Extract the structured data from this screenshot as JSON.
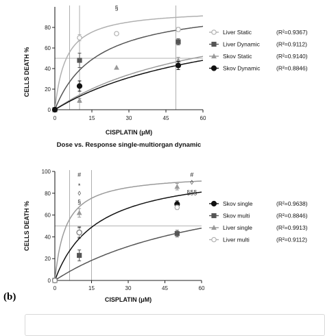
{
  "panel_label": "(b)",
  "chart_data": [
    {
      "type": "line",
      "title": "",
      "xlabel": "CISPLATIN (μM)",
      "ylabel": "CELLS DEATH %",
      "xlim": [
        0,
        60
      ],
      "ylim": [
        0,
        100
      ],
      "xticks": [
        0,
        15,
        30,
        45,
        60
      ],
      "yticks": [
        0,
        20,
        40,
        60,
        80
      ],
      "ref_line_y": 50,
      "ref_lines_x": [
        6,
        10,
        49
      ],
      "legend_position": "right",
      "series": [
        {
          "name": "Liver Static",
          "r2": "(R²=0.9367)",
          "marker": "circle-open",
          "color": "#b0b0b0",
          "x": [
            0,
            10,
            25,
            50
          ],
          "y": [
            0,
            70,
            74,
            78
          ],
          "err": [
            0,
            3,
            0,
            2
          ],
          "fit": {
            "top": 98,
            "ec50": 4.5
          }
        },
        {
          "name": "Liver Dynamic",
          "r2": "(R²=0.9112)",
          "marker": "square",
          "color": "#555555",
          "x": [
            0,
            10,
            50
          ],
          "y": [
            0,
            48,
            66
          ],
          "err": [
            0,
            7,
            3
          ],
          "fit": {
            "top": 104,
            "ec50": 17
          }
        },
        {
          "name": "Skov Static",
          "r2": "(R²=0.9140)",
          "marker": "triangle",
          "color": "#9a9a9a",
          "x": [
            0,
            10,
            25,
            50
          ],
          "y": [
            0,
            9,
            41,
            48
          ],
          "err": [
            0,
            2,
            0,
            3
          ],
          "fit": {
            "top": 108,
            "ec50": 65
          }
        },
        {
          "name": "Skov Dynamic",
          "r2": "(R²=0.8846)",
          "marker": "circle",
          "color": "#111111",
          "x": [
            0,
            10,
            50
          ],
          "y": [
            0,
            23,
            43
          ],
          "err": [
            0,
            5,
            4
          ],
          "fit": {
            "top": 104,
            "ec50": 70
          }
        }
      ],
      "annotations": [
        {
          "text": "§",
          "x": 25,
          "y": 97
        }
      ]
    },
    {
      "type": "line",
      "title": "Dose vs. Response single-multiorgan dynamic",
      "xlabel": "CISPLATIN (μM)",
      "ylabel": "CELLS DEATH %",
      "xlim": [
        0,
        60
      ],
      "ylim": [
        0,
        100
      ],
      "xticks": [
        0,
        15,
        30,
        45,
        60
      ],
      "yticks": [
        0,
        20,
        40,
        60,
        80,
        100
      ],
      "ref_line_y": 50,
      "ref_lines_x": [
        6,
        15
      ],
      "legend_position": "right",
      "series": [
        {
          "name": "Skov single",
          "r2": "(R²=0.9638)",
          "marker": "circle",
          "color": "#111111",
          "x": [
            0,
            10,
            50
          ],
          "y": [
            0,
            44,
            70
          ],
          "err": [
            0,
            5,
            3
          ],
          "fit": {
            "top": 104,
            "ec50": 17
          }
        },
        {
          "name": "Skov multi",
          "r2": "(R²=0.8846)",
          "marker": "square",
          "color": "#555555",
          "x": [
            0,
            10,
            50
          ],
          "y": [
            0,
            23,
            43
          ],
          "err": [
            0,
            5,
            3
          ],
          "fit": {
            "top": 104,
            "ec50": 70
          }
        },
        {
          "name": "Liver single",
          "r2": "(R²=0.9913)",
          "marker": "triangle",
          "color": "#9a9a9a",
          "x": [
            0,
            10,
            50
          ],
          "y": [
            0,
            62,
            86
          ],
          "err": [
            0,
            4,
            3
          ],
          "fit": {
            "top": 98,
            "ec50": 4.5
          }
        },
        {
          "name": "Liver multi",
          "r2": "(R²=0.9112)",
          "marker": "circle-open",
          "color": "#b0b0b0",
          "x": [
            0,
            10,
            50
          ],
          "y": [
            0,
            44,
            67
          ],
          "err": [
            0,
            4,
            2
          ],
          "fit": null
        }
      ],
      "annotations": [
        {
          "text": "#",
          "x": 10,
          "y": 95
        },
        {
          "text": "*",
          "x": 10,
          "y": 85
        },
        {
          "text": "◊",
          "x": 10,
          "y": 78
        },
        {
          "text": "§",
          "x": 10,
          "y": 70
        },
        {
          "text": "#",
          "x": 56,
          "y": 95
        },
        {
          "text": "◊",
          "x": 56,
          "y": 88
        },
        {
          "text": "§§§",
          "x": 56,
          "y": 79
        }
      ]
    }
  ]
}
